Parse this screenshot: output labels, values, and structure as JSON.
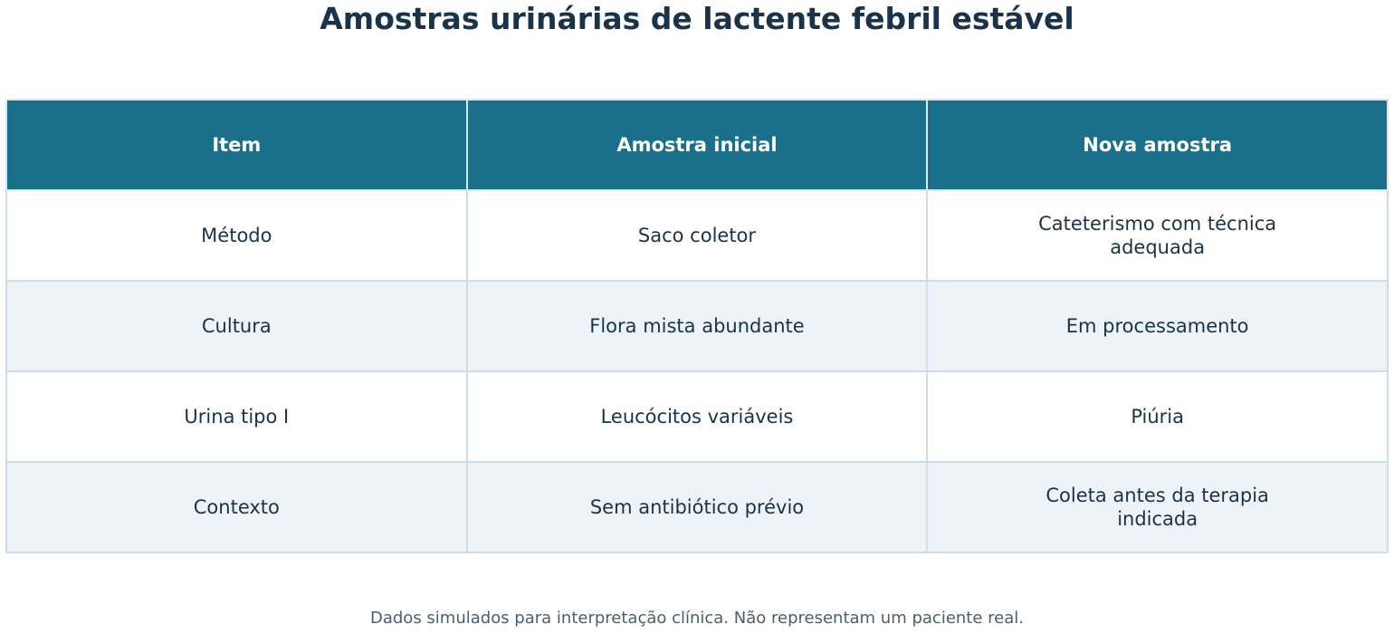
{
  "title": "Amostras urinárias de lactente febril estável",
  "table": {
    "header": [
      "Item",
      "Amostra inicial",
      "Nova amostra"
    ],
    "rows": [
      [
        "Método",
        "Saco coletor",
        "Cateterismo com técnica\nadequada"
      ],
      [
        "Cultura",
        "Flora mista abundante",
        "Em processamento"
      ],
      [
        "Urina tipo I",
        "Leucócitos variáveis",
        "Piúria"
      ],
      [
        "Contexto",
        "Sem antibiótico prévio",
        "Coleta antes da terapia\nindicada"
      ]
    ]
  },
  "footer": "Dados simulados para interpretação clínica. Não representam um paciente real."
}
